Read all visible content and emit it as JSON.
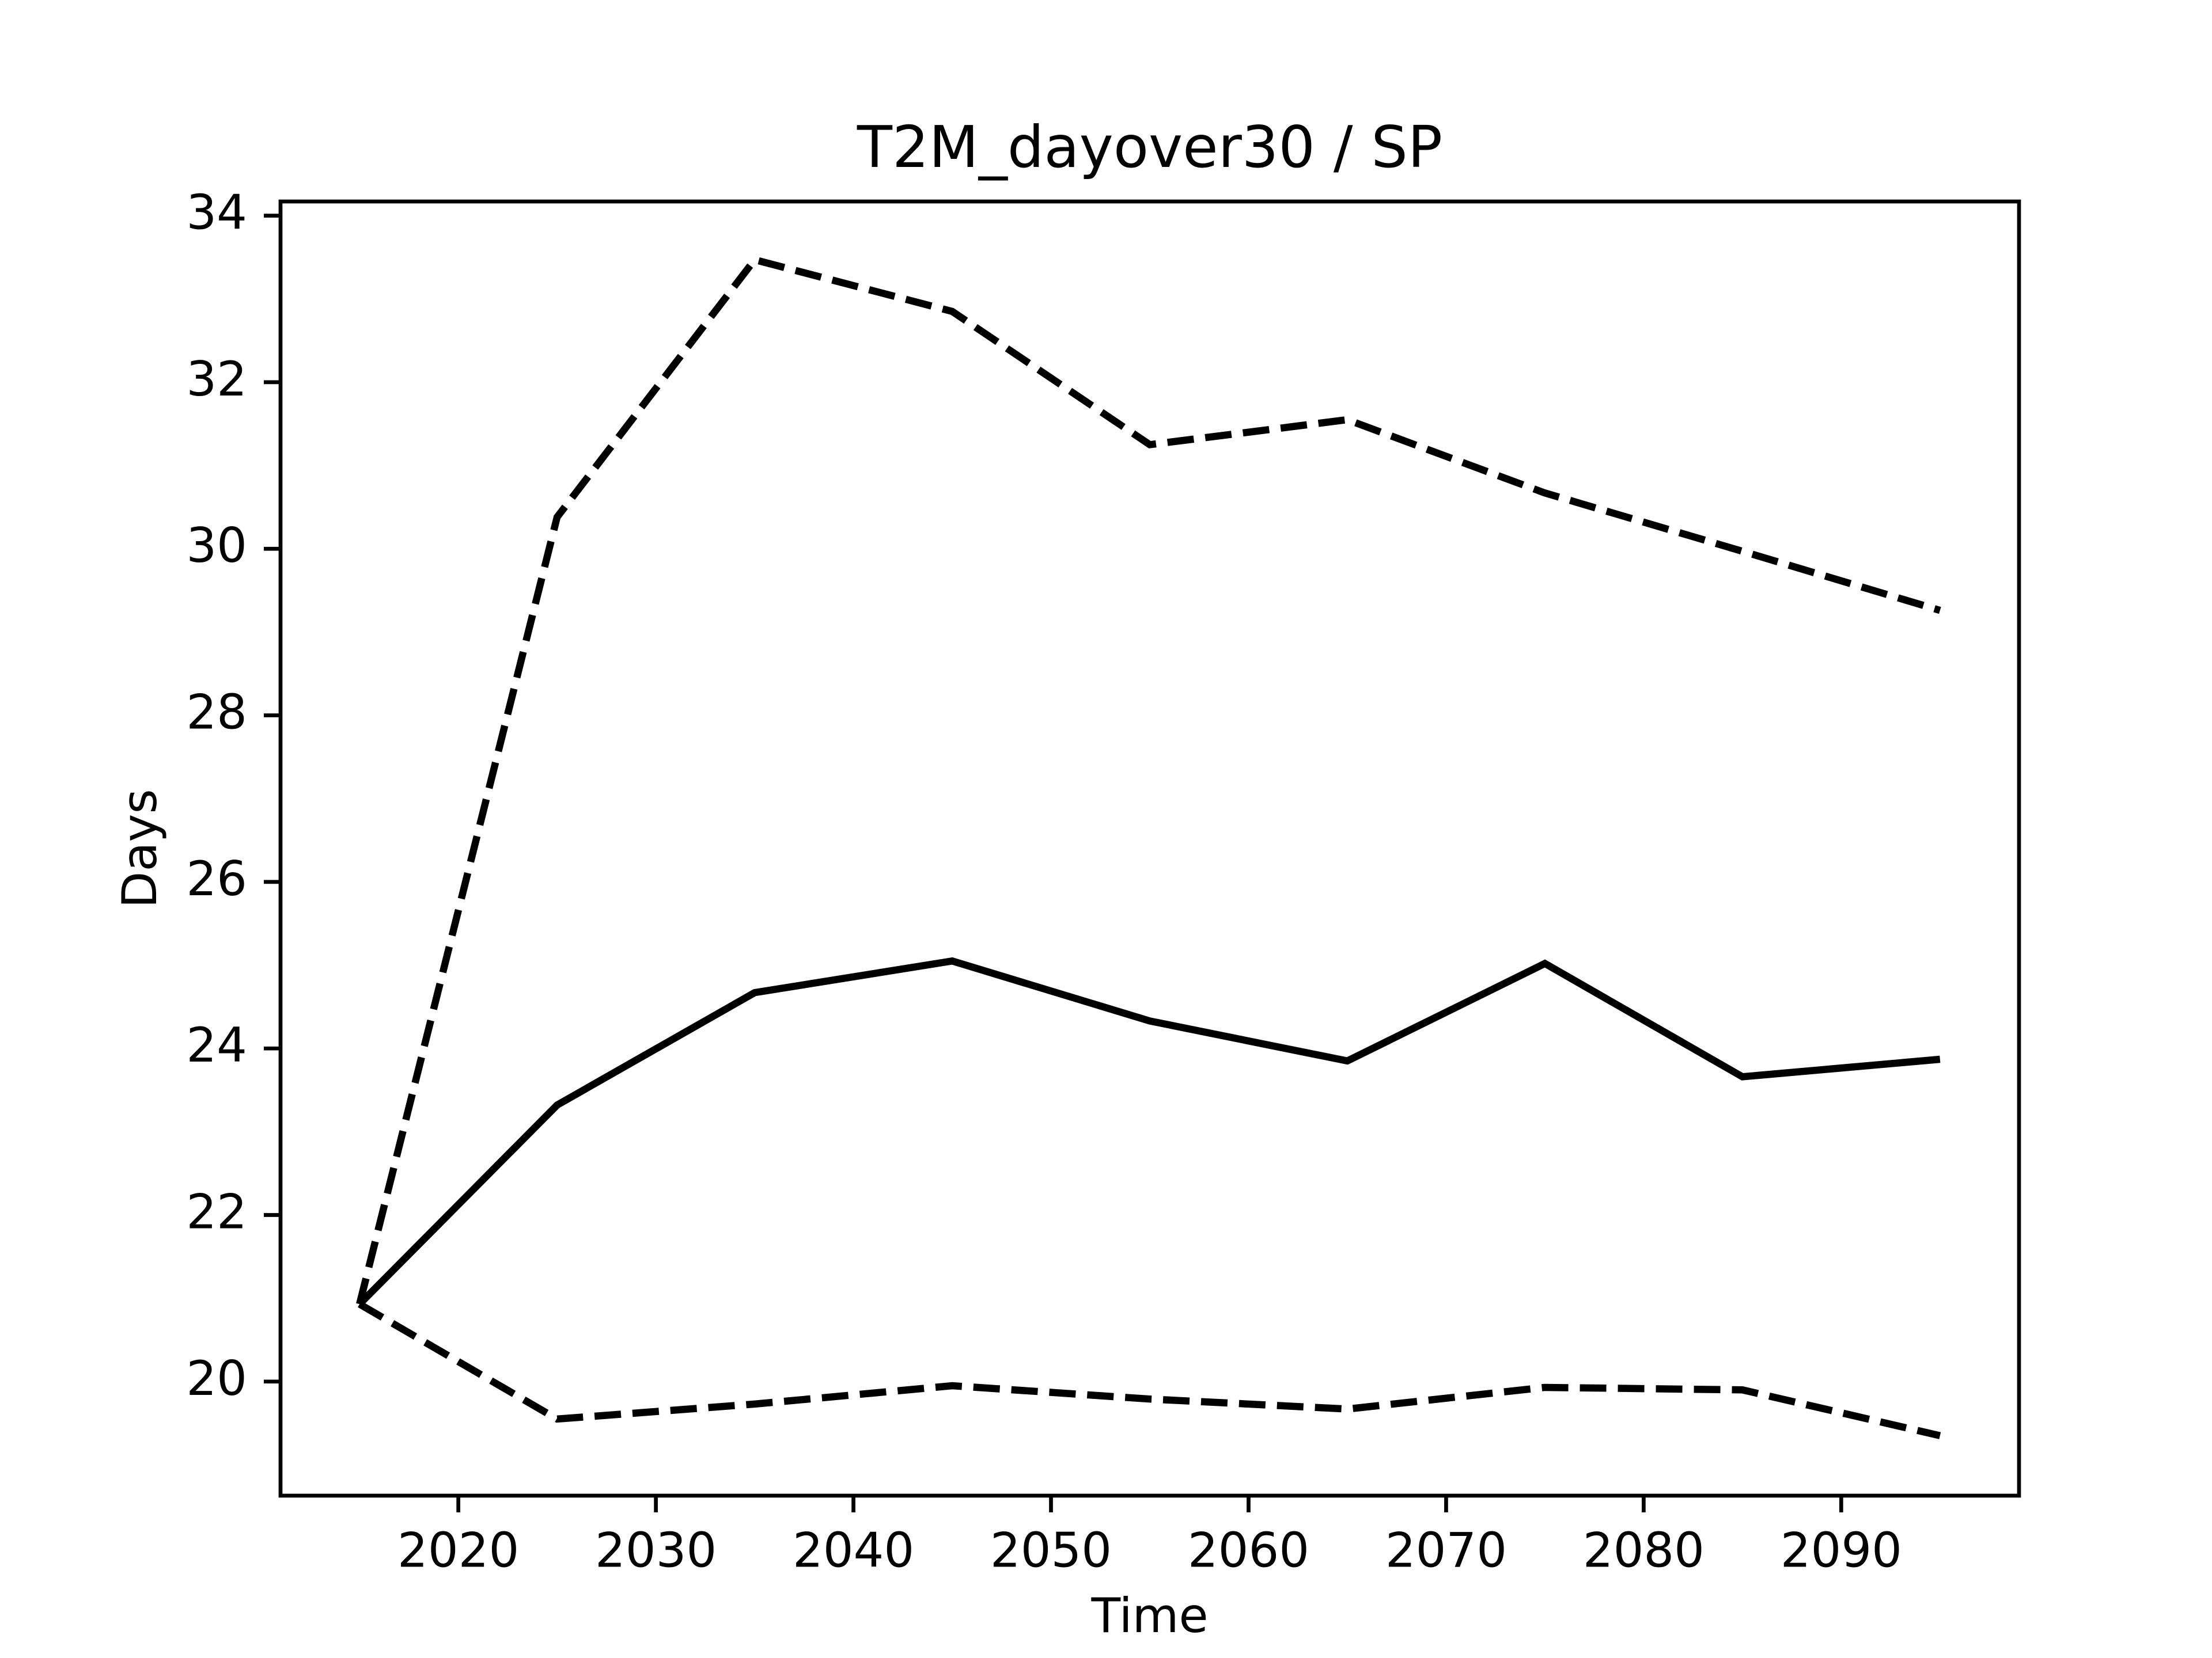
{
  "chart_data": {
    "type": "line",
    "title": "T2M_dayover30 / SP",
    "xlabel": "Time",
    "ylabel": "Days",
    "x": [
      2015,
      2025,
      2035,
      2045,
      2055,
      2065,
      2075,
      2085,
      2095
    ],
    "series": [
      {
        "color": "#000000",
        "linestyle": "solid",
        "values": [
          20.93,
          23.32,
          24.67,
          25.05,
          24.33,
          23.85,
          25.02,
          23.66,
          23.87
        ]
      },
      {
        "color": "#000000",
        "linestyle": "dashed",
        "values": [
          20.93,
          30.38,
          33.47,
          32.85,
          31.25,
          31.55,
          30.67,
          29.97,
          29.26
        ]
      },
      {
        "color": "#000000",
        "linestyle": "dashed",
        "values": [
          20.93,
          19.55,
          19.73,
          19.95,
          19.79,
          19.67,
          19.93,
          19.9,
          19.35
        ]
      }
    ],
    "xlim": [
      2011,
      2099
    ],
    "xticks": [
      2020,
      2030,
      2040,
      2050,
      2060,
      2070,
      2080,
      2090
    ],
    "ylim": [
      18.63,
      34.17
    ],
    "yticks": [
      20,
      22,
      24,
      26,
      28,
      30,
      32,
      34
    ],
    "grid": false
  }
}
